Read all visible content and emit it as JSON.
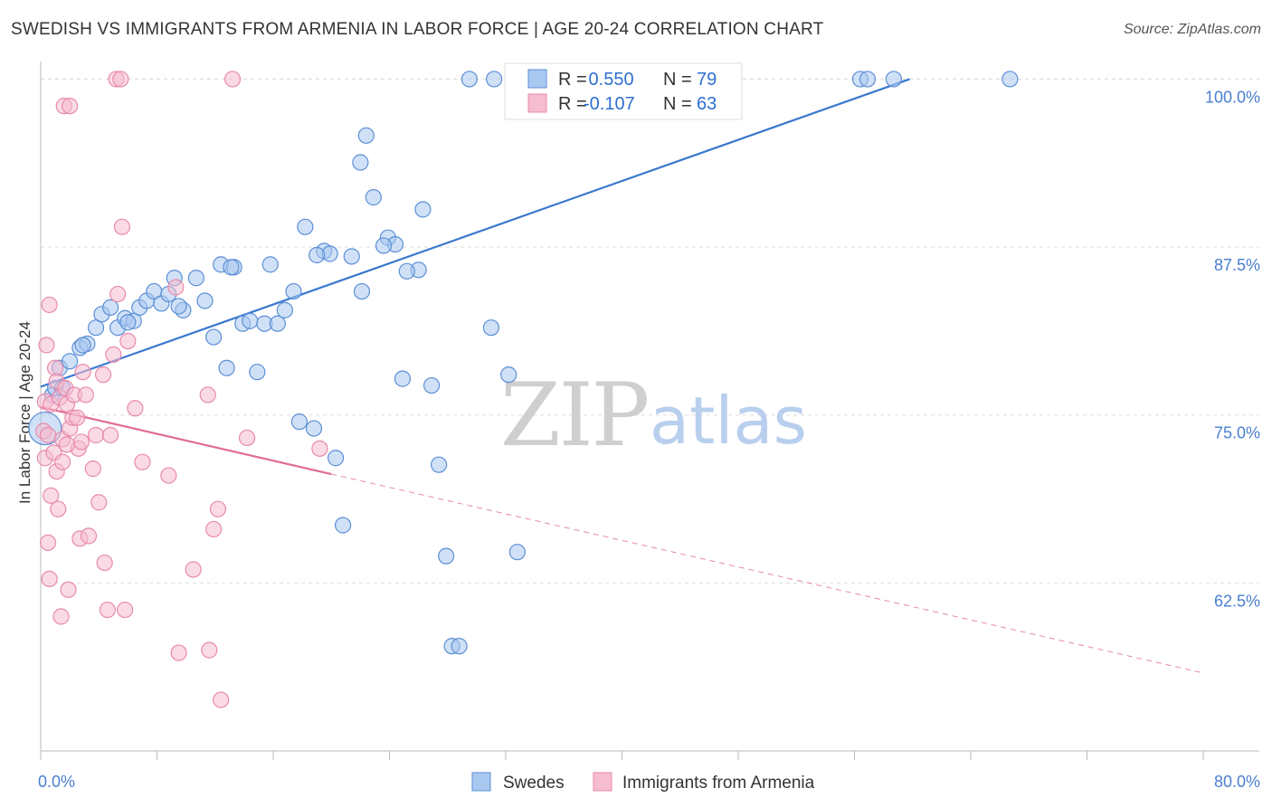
{
  "title": "SWEDISH VS IMMIGRANTS FROM ARMENIA IN LABOR FORCE | AGE 20-24 CORRELATION CHART",
  "source": "Source: ZipAtlas.com",
  "watermark": {
    "zip": "ZIP",
    "atlas": "atlas"
  },
  "colors": {
    "blue_fill": "#a9c8f0",
    "blue_stroke": "#5b8fd6",
    "blue_line": "#3a78d0",
    "pink_fill": "#f6bcd0",
    "pink_stroke": "#e88aab",
    "pink_line": "#e26b96",
    "grid": "#dddddd",
    "axis": "#bbbbbb",
    "tick_text": "#4a7fd0"
  },
  "chart_data": {
    "type": "scatter",
    "title": "SWEDISH VS IMMIGRANTS FROM ARMENIA IN LABOR FORCE | AGE 20-24 CORRELATION CHART",
    "xlabel": "",
    "ylabel": "In Labor Force | Age 20-24",
    "xlim": [
      0,
      80
    ],
    "ylim": [
      50,
      100.5
    ],
    "x_tick_labels": [
      "0.0%",
      "80.0%"
    ],
    "y_ticks": [
      62.5,
      75.0,
      87.5,
      100.0
    ],
    "y_tick_labels": [
      "62.5%",
      "75.0%",
      "87.5%",
      "100.0%"
    ],
    "legend": {
      "position": "top-center",
      "rows": [
        {
          "r_label": "R =",
          "r_value": " 0.550",
          "n_label": "N =",
          "n_value": "79"
        },
        {
          "r_label": "R =",
          "r_value": "-0.107",
          "n_label": "N =",
          "n_value": "63"
        }
      ]
    },
    "series": [
      {
        "name": "Swedes",
        "color": "#a9c8f0",
        "trend": {
          "x0": 0,
          "y0": 77.1,
          "x1": 59.8,
          "y1": 100.0,
          "dashed_to": null
        },
        "points": [
          [
            0.3,
            74.0,
            "big"
          ],
          [
            0.8,
            76.5
          ],
          [
            1.0,
            77.0
          ],
          [
            1.3,
            78.5
          ],
          [
            1.5,
            77.0
          ],
          [
            2.0,
            79.0
          ],
          [
            2.7,
            80.0
          ],
          [
            3.2,
            80.3
          ],
          [
            3.8,
            81.5
          ],
          [
            4.2,
            82.5
          ],
          [
            4.8,
            83.0
          ],
          [
            5.3,
            81.5
          ],
          [
            5.8,
            82.2
          ],
          [
            6.4,
            82.0
          ],
          [
            6.8,
            83.0
          ],
          [
            7.3,
            83.5
          ],
          [
            7.8,
            84.2
          ],
          [
            8.3,
            83.3
          ],
          [
            8.8,
            84.0
          ],
          [
            9.2,
            85.2
          ],
          [
            9.8,
            82.8
          ],
          [
            10.7,
            85.2
          ],
          [
            11.3,
            83.5
          ],
          [
            11.9,
            80.8
          ],
          [
            12.4,
            86.2
          ],
          [
            12.8,
            78.5
          ],
          [
            13.3,
            86.0
          ],
          [
            13.9,
            81.8
          ],
          [
            14.4,
            82.0
          ],
          [
            14.9,
            78.2
          ],
          [
            15.4,
            81.8
          ],
          [
            15.8,
            86.2
          ],
          [
            16.3,
            81.8
          ],
          [
            16.8,
            82.8
          ],
          [
            17.4,
            84.2
          ],
          [
            17.8,
            74.5
          ],
          [
            18.2,
            89.0
          ],
          [
            18.8,
            74.0
          ],
          [
            19.5,
            87.2
          ],
          [
            19.9,
            87.0
          ],
          [
            20.3,
            71.8
          ],
          [
            20.8,
            66.8
          ],
          [
            21.4,
            86.8
          ],
          [
            22.1,
            84.2
          ],
          [
            22.0,
            93.8
          ],
          [
            22.4,
            95.8
          ],
          [
            22.9,
            91.2
          ],
          [
            23.9,
            88.2
          ],
          [
            24.4,
            87.7
          ],
          [
            24.9,
            77.7
          ],
          [
            26.0,
            85.8
          ],
          [
            26.3,
            90.3
          ],
          [
            26.9,
            77.2
          ],
          [
            27.4,
            71.3
          ],
          [
            27.9,
            64.5
          ],
          [
            28.3,
            57.8
          ],
          [
            28.8,
            57.8
          ],
          [
            29.5,
            100.0
          ],
          [
            31.0,
            81.5
          ],
          [
            31.2,
            100.0
          ],
          [
            32.2,
            78.0
          ],
          [
            32.8,
            64.8
          ],
          [
            35.3,
            100.0
          ],
          [
            37.6,
            100.0
          ],
          [
            40.1,
            100.0
          ],
          [
            43.6,
            100.0
          ],
          [
            45.1,
            100.0
          ],
          [
            47.6,
            100.0
          ],
          [
            56.4,
            100.0
          ],
          [
            56.9,
            100.0
          ],
          [
            58.7,
            100.0
          ],
          [
            66.7,
            100.0
          ],
          [
            2.9,
            80.2
          ],
          [
            6.0,
            81.9
          ],
          [
            9.5,
            83.1
          ],
          [
            13.1,
            86.0
          ],
          [
            19.0,
            86.9
          ],
          [
            23.6,
            87.6
          ],
          [
            25.2,
            85.7
          ]
        ]
      },
      {
        "name": "Immigrants from Armenia",
        "color": "#f6bcd0",
        "trend": {
          "x0": 0,
          "y0": 75.6,
          "x1": 20.0,
          "y1": 70.6,
          "dashed_to": [
            80.0,
            55.8
          ]
        },
        "points": [
          [
            0.2,
            73.8
          ],
          [
            0.3,
            76.0
          ],
          [
            0.3,
            71.8
          ],
          [
            0.4,
            80.2
          ],
          [
            0.5,
            65.5
          ],
          [
            0.6,
            62.8
          ],
          [
            0.6,
            83.2
          ],
          [
            0.7,
            75.8
          ],
          [
            0.9,
            72.2
          ],
          [
            1.0,
            78.5
          ],
          [
            1.1,
            70.8
          ],
          [
            1.1,
            77.5
          ],
          [
            1.2,
            68.0
          ],
          [
            1.3,
            76.3
          ],
          [
            1.4,
            60.0
          ],
          [
            1.5,
            71.5
          ],
          [
            1.5,
            73.2
          ],
          [
            1.6,
            98.0
          ],
          [
            1.7,
            77.0
          ],
          [
            1.8,
            75.8
          ],
          [
            1.9,
            62.0
          ],
          [
            2.0,
            74.0
          ],
          [
            2.0,
            98.0
          ],
          [
            2.2,
            74.8
          ],
          [
            2.3,
            76.5
          ],
          [
            2.5,
            74.8
          ],
          [
            2.6,
            72.5
          ],
          [
            2.7,
            65.8
          ],
          [
            2.8,
            73.0
          ],
          [
            2.9,
            78.2
          ],
          [
            3.1,
            76.5
          ],
          [
            3.3,
            66.0
          ],
          [
            3.8,
            73.5
          ],
          [
            4.3,
            78.0
          ],
          [
            4.4,
            64.0
          ],
          [
            4.6,
            60.5
          ],
          [
            4.8,
            73.5
          ],
          [
            5.0,
            79.5
          ],
          [
            5.2,
            100.0
          ],
          [
            5.3,
            84.0
          ],
          [
            5.5,
            100.0
          ],
          [
            5.6,
            89.0
          ],
          [
            5.8,
            60.5
          ],
          [
            6.0,
            80.5
          ],
          [
            7.0,
            71.5
          ],
          [
            8.8,
            70.5
          ],
          [
            9.3,
            84.5
          ],
          [
            9.5,
            57.3
          ],
          [
            11.5,
            76.5
          ],
          [
            11.6,
            57.5
          ],
          [
            11.9,
            66.5
          ],
          [
            12.2,
            68.0
          ],
          [
            12.4,
            53.8
          ],
          [
            13.2,
            100.0
          ],
          [
            14.2,
            73.3
          ],
          [
            19.2,
            72.5
          ],
          [
            0.5,
            73.5
          ],
          [
            0.7,
            69.0
          ],
          [
            1.8,
            72.8
          ],
          [
            3.6,
            71.0
          ],
          [
            4.0,
            68.5
          ],
          [
            6.5,
            75.5
          ],
          [
            10.5,
            63.5
          ]
        ]
      }
    ]
  },
  "bottom_legend": [
    {
      "label": "Swedes",
      "color": "#a9c8f0"
    },
    {
      "label": "Immigrants from Armenia",
      "color": "#f6bcd0"
    }
  ]
}
